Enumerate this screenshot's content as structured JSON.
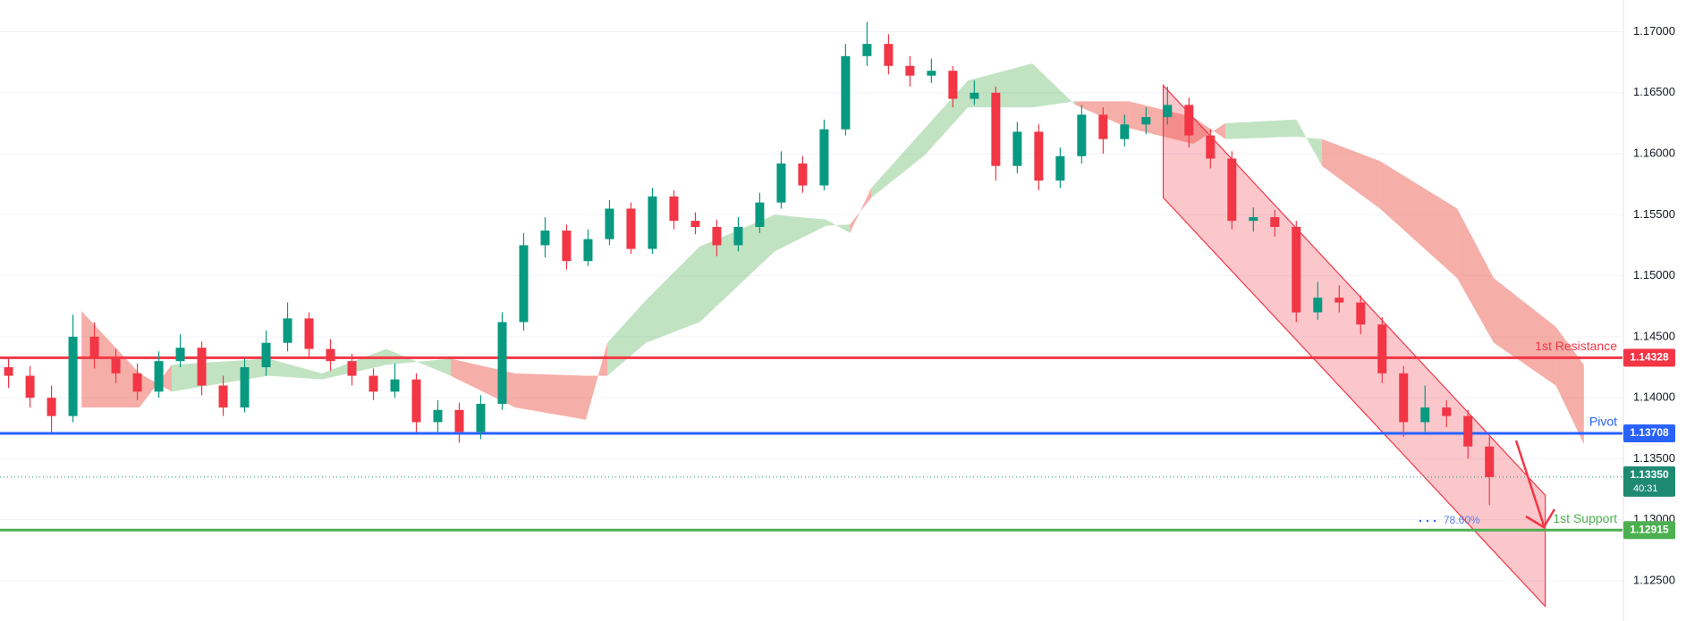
{
  "chart_data": {
    "type": "candlestick",
    "ylim": [
      1.1217,
      1.1726
    ],
    "xlim": [
      -0.4,
      75.2
    ],
    "yticks": [
      {
        "value": 1.17,
        "label": "1.17000"
      },
      {
        "value": 1.165,
        "label": "1.16500"
      },
      {
        "value": 1.16,
        "label": "1.16000"
      },
      {
        "value": 1.155,
        "label": "1.15500"
      },
      {
        "value": 1.15,
        "label": "1.15000"
      },
      {
        "value": 1.145,
        "label": "1.14500"
      },
      {
        "value": 1.14,
        "label": "1.14000"
      },
      {
        "value": 1.135,
        "label": "1.13500"
      },
      {
        "value": 1.13,
        "label": "1.13000"
      },
      {
        "value": 1.125,
        "label": "1.12500"
      }
    ],
    "grid": true,
    "up_color": "#089981",
    "down_color": "#f23645",
    "candles": [
      [
        1.1425,
        1.1432,
        1.1408,
        1.1418
      ],
      [
        1.1418,
        1.1426,
        1.1392,
        1.14
      ],
      [
        1.14,
        1.141,
        1.1372,
        1.1385
      ],
      [
        1.1385,
        1.1468,
        1.138,
        1.145
      ],
      [
        1.145,
        1.1462,
        1.1424,
        1.1432
      ],
      [
        1.1432,
        1.144,
        1.1412,
        1.142
      ],
      [
        1.142,
        1.1428,
        1.1398,
        1.1405
      ],
      [
        1.1405,
        1.1438,
        1.14,
        1.143
      ],
      [
        1.143,
        1.1452,
        1.1425,
        1.1441
      ],
      [
        1.1441,
        1.1446,
        1.1402,
        1.141
      ],
      [
        1.141,
        1.1418,
        1.1385,
        1.1392
      ],
      [
        1.1392,
        1.1432,
        1.1388,
        1.1425
      ],
      [
        1.1425,
        1.1455,
        1.1418,
        1.1445
      ],
      [
        1.1445,
        1.1478,
        1.1438,
        1.1465
      ],
      [
        1.1465,
        1.147,
        1.1432,
        1.144
      ],
      [
        1.144,
        1.1448,
        1.1422,
        1.143
      ],
      [
        1.143,
        1.1436,
        1.141,
        1.1418
      ],
      [
        1.1418,
        1.1424,
        1.1398,
        1.1405
      ],
      [
        1.1405,
        1.1428,
        1.14,
        1.1415
      ],
      [
        1.1415,
        1.142,
        1.1372,
        1.138
      ],
      [
        1.138,
        1.1398,
        1.1372,
        1.139
      ],
      [
        1.139,
        1.1396,
        1.1363,
        1.1372
      ],
      [
        1.1372,
        1.1402,
        1.1366,
        1.1395
      ],
      [
        1.1395,
        1.147,
        1.139,
        1.1462
      ],
      [
        1.1462,
        1.1535,
        1.1455,
        1.1525
      ],
      [
        1.1525,
        1.1548,
        1.1515,
        1.1537
      ],
      [
        1.1537,
        1.1542,
        1.1505,
        1.1512
      ],
      [
        1.1512,
        1.1538,
        1.1508,
        1.153
      ],
      [
        1.153,
        1.1562,
        1.1525,
        1.1555
      ],
      [
        1.1555,
        1.156,
        1.1518,
        1.1522
      ],
      [
        1.1522,
        1.1572,
        1.1518,
        1.1565
      ],
      [
        1.1565,
        1.157,
        1.1538,
        1.1545
      ],
      [
        1.1545,
        1.1552,
        1.1534,
        1.154
      ],
      [
        1.154,
        1.1546,
        1.1516,
        1.1525
      ],
      [
        1.1525,
        1.1548,
        1.152,
        1.154
      ],
      [
        1.154,
        1.1568,
        1.1535,
        1.156
      ],
      [
        1.156,
        1.1602,
        1.1555,
        1.1592
      ],
      [
        1.1592,
        1.1598,
        1.1568,
        1.1574
      ],
      [
        1.1574,
        1.1628,
        1.157,
        1.162
      ],
      [
        1.162,
        1.169,
        1.1615,
        1.168
      ],
      [
        1.168,
        1.1708,
        1.1672,
        1.169
      ],
      [
        1.169,
        1.1698,
        1.1665,
        1.1672
      ],
      [
        1.1672,
        1.168,
        1.1655,
        1.1664
      ],
      [
        1.1664,
        1.1678,
        1.1658,
        1.1668
      ],
      [
        1.1668,
        1.1672,
        1.1638,
        1.1645
      ],
      [
        1.1645,
        1.166,
        1.164,
        1.165
      ],
      [
        1.165,
        1.1655,
        1.1578,
        1.159
      ],
      [
        1.159,
        1.1626,
        1.1584,
        1.1618
      ],
      [
        1.1618,
        1.1624,
        1.157,
        1.1578
      ],
      [
        1.1578,
        1.1605,
        1.1572,
        1.1598
      ],
      [
        1.1598,
        1.164,
        1.1592,
        1.1632
      ],
      [
        1.1632,
        1.1638,
        1.16,
        1.1612
      ],
      [
        1.1612,
        1.1632,
        1.1606,
        1.1624
      ],
      [
        1.1624,
        1.1638,
        1.1616,
        1.163
      ],
      [
        1.163,
        1.1655,
        1.1624,
        1.164
      ],
      [
        1.164,
        1.1646,
        1.1605,
        1.1615
      ],
      [
        1.1615,
        1.162,
        1.1588,
        1.1596
      ],
      [
        1.1596,
        1.1602,
        1.1538,
        1.1545
      ],
      [
        1.1545,
        1.1556,
        1.1536,
        1.1548
      ],
      [
        1.1548,
        1.1554,
        1.1532,
        1.154
      ],
      [
        1.154,
        1.1545,
        1.1462,
        1.147
      ],
      [
        1.147,
        1.1495,
        1.1464,
        1.1482
      ],
      [
        1.1482,
        1.1492,
        1.147,
        1.1478
      ],
      [
        1.1478,
        1.1484,
        1.1452,
        1.146
      ],
      [
        1.146,
        1.1466,
        1.1412,
        1.142
      ],
      [
        1.142,
        1.1426,
        1.1368,
        1.138
      ],
      [
        1.138,
        1.141,
        1.1372,
        1.1392
      ],
      [
        1.1392,
        1.1398,
        1.1376,
        1.1385
      ],
      [
        1.1385,
        1.139,
        1.135,
        1.136
      ],
      [
        1.136,
        1.1368,
        1.1312,
        1.1335
      ]
    ],
    "cloud": {
      "x": [
        3.4,
        6.1,
        7.6,
        12.1,
        14.6,
        17.6,
        20.6,
        23.6,
        26.9,
        27.9,
        29.7,
        32.2,
        35.7,
        38.1,
        39.2,
        40.2,
        42.7,
        44.7,
        47.7,
        49.7,
        52.2,
        55.2,
        56.7,
        60.0,
        61.2,
        63.9,
        67.5,
        69.2,
        72.1,
        73.4
      ],
      "span_a": [
        1.1392,
        1.1392,
        1.1427,
        1.1432,
        1.142,
        1.144,
        1.1418,
        1.1392,
        1.1382,
        1.1445,
        1.148,
        1.1524,
        1.155,
        1.1546,
        1.1535,
        1.1572,
        1.1621,
        1.166,
        1.1674,
        1.164,
        1.1621,
        1.1608,
        1.1625,
        1.1628,
        1.159,
        1.1555,
        1.1498,
        1.1445,
        1.141,
        1.1362
      ],
      "span_b": [
        1.1471,
        1.142,
        1.1405,
        1.1418,
        1.1415,
        1.1427,
        1.1432,
        1.142,
        1.1418,
        1.1418,
        1.1445,
        1.1462,
        1.152,
        1.1541,
        1.1542,
        1.1564,
        1.1599,
        1.1638,
        1.1638,
        1.1643,
        1.1643,
        1.163,
        1.1612,
        1.1614,
        1.1612,
        1.1594,
        1.1555,
        1.1498,
        1.1458,
        1.1427
      ],
      "bull_color": "rgba(76,175,80,0.35)",
      "bear_color": "rgba(239,108,96,0.55)"
    },
    "channel": {
      "x": [
        53.8,
        71.6
      ],
      "upper": [
        1.1656,
        1.132
      ],
      "lower": [
        1.1564,
        1.1229
      ],
      "color": "#f23645"
    },
    "levels": [
      {
        "name": "1st Resistance",
        "value": 1.14328,
        "color": "#f23645"
      },
      {
        "name": "Pivot",
        "value": 1.13708,
        "color": "#2962ff"
      },
      {
        "name": "1st Support",
        "value": 1.12915,
        "color": "#4caf50"
      }
    ],
    "last_price": {
      "value": 1.1335,
      "label": "1.13350",
      "countdown": "40:31",
      "color": "#1e8a72"
    },
    "fib_label": "78.60%"
  }
}
